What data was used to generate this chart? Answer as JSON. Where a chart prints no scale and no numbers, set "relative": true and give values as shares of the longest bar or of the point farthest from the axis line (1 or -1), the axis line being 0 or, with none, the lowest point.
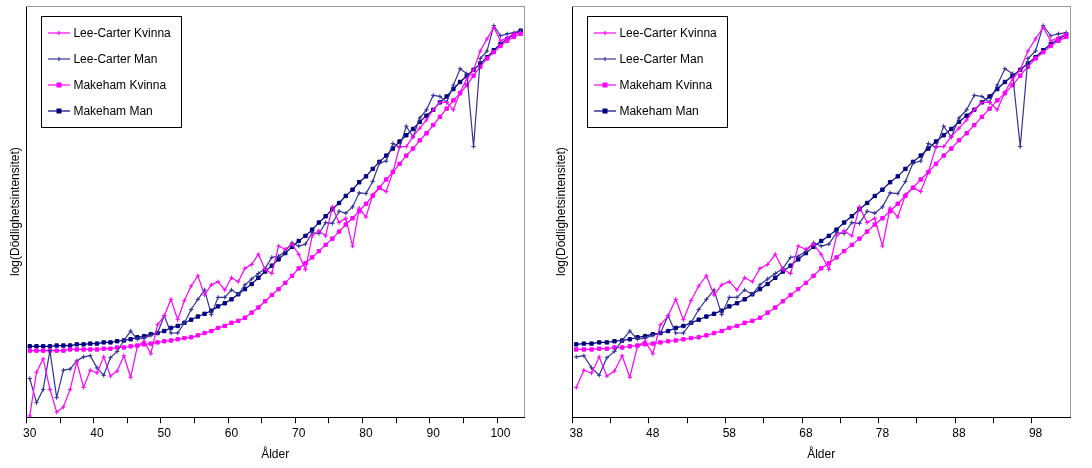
{
  "chart_data": [
    {
      "type": "line",
      "relative": true,
      "xlabel": "Ålder",
      "ylabel": "log(Dödlighetsintensitet)",
      "legend": "top left",
      "categories": [
        "30",
        null,
        null,
        null,
        null,
        null,
        null,
        null,
        null,
        null,
        "40",
        null,
        null,
        null,
        null,
        null,
        null,
        null,
        null,
        null,
        "50",
        null,
        null,
        null,
        null,
        null,
        null,
        null,
        null,
        null,
        "60",
        null,
        null,
        null,
        null,
        null,
        null,
        null,
        null,
        null,
        "70",
        null,
        null,
        null,
        null,
        null,
        null,
        null,
        null,
        null,
        "80",
        null,
        null,
        null,
        null,
        null,
        null,
        null,
        null,
        null,
        "90",
        null,
        null,
        null,
        null,
        null,
        null,
        null,
        null,
        null,
        "100",
        null,
        null,
        null
      ],
      "series": [
        {
          "name": "Lee-Carter Kvinna",
          "color": "#ff00ff",
          "marker": "cross",
          "values": [
            0.003,
            0.115,
            0.149,
            0.071,
            0.013,
            0.026,
            0.071,
            0.141,
            0.076,
            0.12,
            0.113,
            0.154,
            0.105,
            0.118,
            0.157,
            0.102,
            0.181,
            0.194,
            0.162,
            0.236,
            0.259,
            0.301,
            0.249,
            0.298,
            0.335,
            0.361,
            0.312,
            0.338,
            0.346,
            0.325,
            0.356,
            0.346,
            0.38,
            0.39,
            0.416,
            0.377,
            0.367,
            0.437,
            0.429,
            0.442,
            0.416,
            0.377,
            0.463,
            0.476,
            0.463,
            0.537,
            0.497,
            0.508,
            0.437,
            0.534,
            0.511,
            0.568,
            0.586,
            0.576,
            0.626,
            0.691,
            0.691,
            0.717,
            0.738,
            0.759,
            0.785,
            0.804,
            0.804,
            0.785,
            0.83,
            0.864,
            0.887,
            0.935,
            0.966,
            0.995,
            0.961,
            0.969,
            0.979,
            0.982
          ]
        },
        {
          "name": "Lee-Carter Man",
          "color": "#333399",
          "marker": "cross",
          "values": [
            0.099,
            0.037,
            0.071,
            0.17,
            0.05,
            0.12,
            0.123,
            0.144,
            0.154,
            0.157,
            0.126,
            0.107,
            0.152,
            0.168,
            0.196,
            0.22,
            0.199,
            0.202,
            0.209,
            0.215,
            0.259,
            0.215,
            0.215,
            0.241,
            0.275,
            0.301,
            0.325,
            0.262,
            0.306,
            0.306,
            0.325,
            0.314,
            0.338,
            0.353,
            0.367,
            0.38,
            0.408,
            0.411,
            0.424,
            0.445,
            0.437,
            0.442,
            0.471,
            0.469,
            0.497,
            0.495,
            0.526,
            0.521,
            0.537,
            0.573,
            0.571,
            0.602,
            0.649,
            0.654,
            0.699,
            0.689,
            0.743,
            0.715,
            0.764,
            0.785,
            0.822,
            0.819,
            0.804,
            0.848,
            0.89,
            0.877,
            0.691,
            0.916,
            0.935,
            1,
            0.974,
            0.979,
            0.982,
            0.987
          ]
        },
        {
          "name": "Makeham Kvinna",
          "color": "#ff00ff",
          "marker": "square",
          "values": [
            0.17,
            0.17,
            0.17,
            0.17,
            0.17,
            0.17,
            0.173,
            0.173,
            0.173,
            0.173,
            0.173,
            0.175,
            0.175,
            0.178,
            0.178,
            0.181,
            0.183,
            0.186,
            0.188,
            0.191,
            0.194,
            0.196,
            0.199,
            0.202,
            0.204,
            0.209,
            0.215,
            0.22,
            0.228,
            0.233,
            0.241,
            0.246,
            0.254,
            0.267,
            0.28,
            0.296,
            0.312,
            0.327,
            0.343,
            0.361,
            0.38,
            0.393,
            0.408,
            0.424,
            0.44,
            0.456,
            0.474,
            0.492,
            0.508,
            0.526,
            0.545,
            0.565,
            0.586,
            0.607,
            0.626,
            0.647,
            0.668,
            0.686,
            0.707,
            0.725,
            0.746,
            0.767,
            0.788,
            0.809,
            0.827,
            0.848,
            0.872,
            0.895,
            0.916,
            0.932,
            0.948,
            0.961,
            0.971,
            0.979
          ]
        },
        {
          "name": "Makeham Man",
          "color": "#000080",
          "marker": "square",
          "values": [
            0.181,
            0.181,
            0.181,
            0.181,
            0.183,
            0.183,
            0.183,
            0.186,
            0.186,
            0.188,
            0.188,
            0.191,
            0.191,
            0.194,
            0.196,
            0.199,
            0.204,
            0.207,
            0.212,
            0.215,
            0.22,
            0.228,
            0.233,
            0.241,
            0.249,
            0.257,
            0.264,
            0.272,
            0.283,
            0.291,
            0.301,
            0.314,
            0.327,
            0.34,
            0.356,
            0.372,
            0.387,
            0.403,
            0.419,
            0.435,
            0.45,
            0.463,
            0.479,
            0.497,
            0.513,
            0.531,
            0.547,
            0.565,
            0.581,
            0.6,
            0.615,
            0.634,
            0.652,
            0.668,
            0.686,
            0.704,
            0.72,
            0.736,
            0.754,
            0.77,
            0.785,
            0.804,
            0.819,
            0.838,
            0.856,
            0.872,
            0.887,
            0.903,
            0.919,
            0.937,
            0.953,
            0.966,
            0.976,
            0.987
          ]
        }
      ]
    },
    {
      "type": "line",
      "relative": true,
      "xlabel": "Ålder",
      "ylabel": "log(Dödlighetsintensitet)",
      "legend": "top left",
      "categories": [
        "38",
        null,
        null,
        null,
        null,
        null,
        null,
        null,
        null,
        null,
        "48",
        null,
        null,
        null,
        null,
        null,
        null,
        null,
        null,
        null,
        "58",
        null,
        null,
        null,
        null,
        null,
        null,
        null,
        null,
        null,
        "68",
        null,
        null,
        null,
        null,
        null,
        null,
        null,
        null,
        null,
        "78",
        null,
        null,
        null,
        null,
        null,
        null,
        null,
        null,
        null,
        "88",
        null,
        null,
        null,
        null,
        null,
        null,
        null,
        null,
        null,
        "98",
        null,
        null,
        null,
        null
      ],
      "series": [
        {
          "name": "Lee-Carter Kvinna",
          "color": "#ff00ff",
          "marker": "cross",
          "values": [
            0.076,
            0.12,
            0.113,
            0.154,
            0.105,
            0.118,
            0.157,
            0.102,
            0.181,
            0.194,
            0.162,
            0.236,
            0.259,
            0.301,
            0.249,
            0.298,
            0.335,
            0.361,
            0.312,
            0.338,
            0.346,
            0.325,
            0.356,
            0.346,
            0.38,
            0.39,
            0.416,
            0.377,
            0.367,
            0.437,
            0.429,
            0.442,
            0.416,
            0.377,
            0.463,
            0.476,
            0.463,
            0.537,
            0.497,
            0.508,
            0.437,
            0.534,
            0.511,
            0.568,
            0.586,
            0.576,
            0.626,
            0.691,
            0.691,
            0.717,
            0.738,
            0.759,
            0.785,
            0.804,
            0.804,
            0.785,
            0.83,
            0.864,
            0.887,
            0.935,
            0.966,
            0.995,
            0.961,
            0.969,
            0.979
          ]
        },
        {
          "name": "Lee-Carter Man",
          "color": "#333399",
          "marker": "cross",
          "values": [
            0.154,
            0.157,
            0.126,
            0.107,
            0.152,
            0.168,
            0.196,
            0.22,
            0.199,
            0.202,
            0.209,
            0.215,
            0.259,
            0.215,
            0.215,
            0.241,
            0.275,
            0.301,
            0.325,
            0.262,
            0.306,
            0.306,
            0.325,
            0.314,
            0.338,
            0.353,
            0.367,
            0.38,
            0.408,
            0.411,
            0.424,
            0.445,
            0.437,
            0.442,
            0.471,
            0.469,
            0.497,
            0.495,
            0.526,
            0.521,
            0.537,
            0.573,
            0.571,
            0.602,
            0.649,
            0.654,
            0.699,
            0.689,
            0.743,
            0.715,
            0.764,
            0.785,
            0.822,
            0.819,
            0.804,
            0.848,
            0.89,
            0.877,
            0.691,
            0.916,
            0.935,
            1,
            0.974,
            0.979,
            0.982
          ]
        },
        {
          "name": "Makeham Kvinna",
          "color": "#ff00ff",
          "marker": "square",
          "values": [
            0.173,
            0.173,
            0.173,
            0.175,
            0.175,
            0.178,
            0.178,
            0.181,
            0.183,
            0.186,
            0.188,
            0.191,
            0.194,
            0.196,
            0.199,
            0.202,
            0.204,
            0.209,
            0.215,
            0.22,
            0.228,
            0.233,
            0.241,
            0.246,
            0.254,
            0.267,
            0.28,
            0.296,
            0.312,
            0.327,
            0.343,
            0.361,
            0.38,
            0.393,
            0.408,
            0.424,
            0.44,
            0.456,
            0.474,
            0.492,
            0.508,
            0.526,
            0.545,
            0.565,
            0.586,
            0.607,
            0.626,
            0.647,
            0.668,
            0.686,
            0.707,
            0.725,
            0.746,
            0.767,
            0.788,
            0.809,
            0.827,
            0.848,
            0.872,
            0.895,
            0.916,
            0.932,
            0.948,
            0.961,
            0.971
          ]
        },
        {
          "name": "Makeham Man",
          "color": "#000080",
          "marker": "square",
          "values": [
            0.186,
            0.188,
            0.188,
            0.191,
            0.191,
            0.194,
            0.196,
            0.199,
            0.204,
            0.207,
            0.212,
            0.215,
            0.22,
            0.228,
            0.233,
            0.241,
            0.249,
            0.257,
            0.264,
            0.272,
            0.283,
            0.291,
            0.301,
            0.314,
            0.327,
            0.34,
            0.356,
            0.372,
            0.387,
            0.403,
            0.419,
            0.435,
            0.45,
            0.463,
            0.479,
            0.497,
            0.513,
            0.531,
            0.547,
            0.565,
            0.581,
            0.6,
            0.615,
            0.634,
            0.652,
            0.668,
            0.686,
            0.704,
            0.72,
            0.736,
            0.754,
            0.77,
            0.785,
            0.804,
            0.819,
            0.838,
            0.856,
            0.872,
            0.887,
            0.903,
            0.919,
            0.937,
            0.953,
            0.966,
            0.976
          ]
        }
      ]
    }
  ]
}
